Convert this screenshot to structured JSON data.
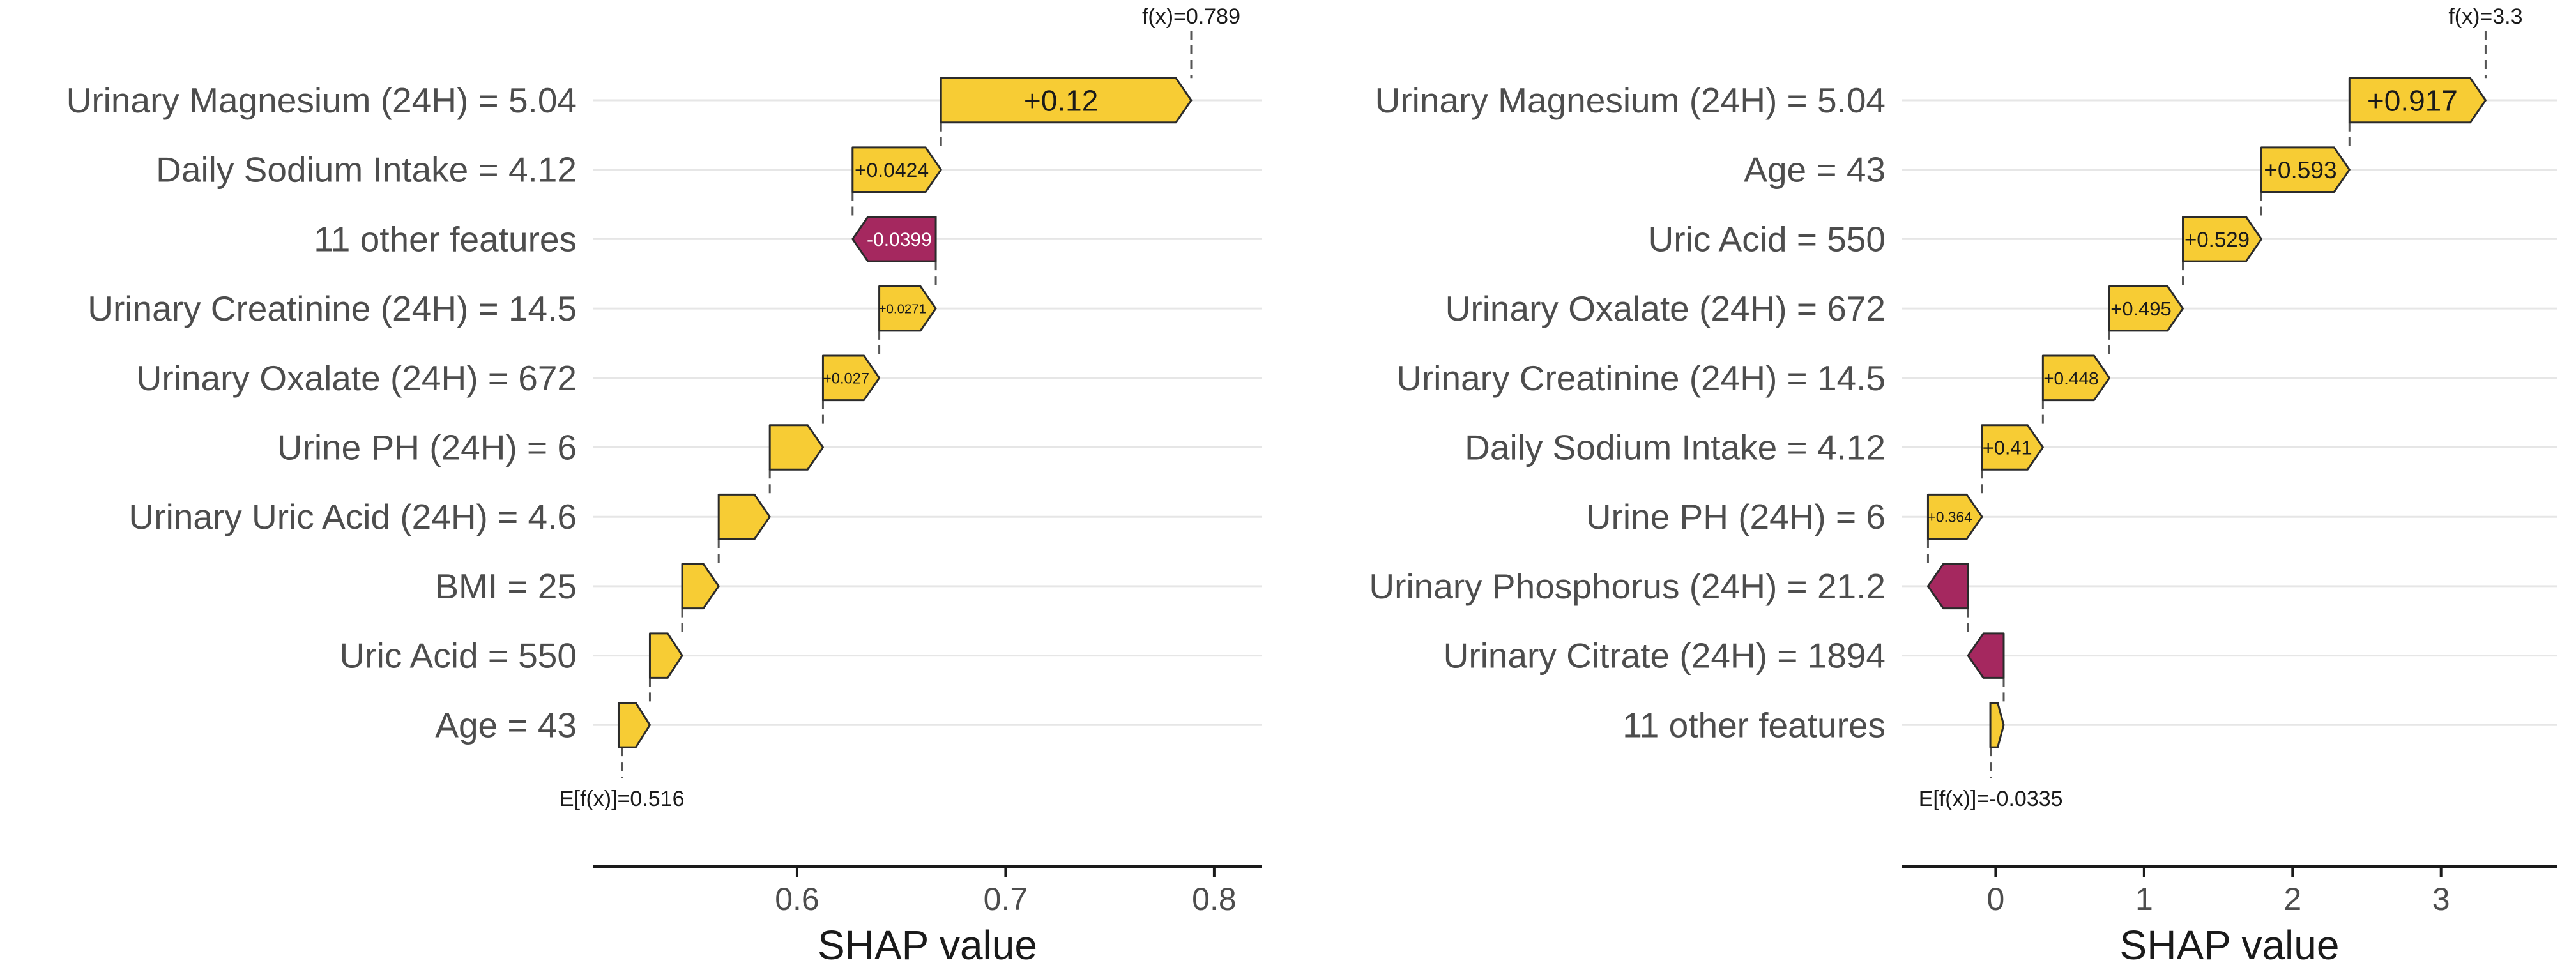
{
  "colors": {
    "positive": "#F7CC34",
    "negative": "#A5285F",
    "grid": "#e6e6e6",
    "axis": "#1a1a1a",
    "text": "#4d4d4d"
  },
  "chart_data": [
    {
      "type": "waterfall",
      "xlabel": "SHAP value",
      "xlim": [
        0.502,
        0.823
      ],
      "xticks": [
        0.6,
        0.7,
        0.8
      ],
      "xtick_labels": [
        "0.6",
        "0.7",
        "0.8"
      ],
      "base_value": 0.516,
      "base_label": "E[f(x)]=0.516",
      "final_value": 0.789,
      "final_label": "f(x)=0.789",
      "features": [
        "Urinary Magnesium (24H) = 5.04",
        "Daily Sodium Intake = 4.12",
        "11 other features",
        "Urinary Creatinine (24H) = 14.5",
        "Urinary Oxalate (24H) = 672",
        "Urine PH (24H) = 6",
        "Urinary Uric Acid (24H) = 4.6",
        "BMI = 25",
        "Uric Acid = 550",
        "Age = 43"
      ],
      "values": [
        0.12,
        0.0424,
        -0.0399,
        0.0271,
        0.027,
        0.0255,
        0.0245,
        0.0175,
        0.0155,
        0.015
      ],
      "value_labels": [
        "+0.12",
        "+0.0424",
        "-0.0399",
        "+0.0271",
        "+0.027",
        "",
        "",
        "",
        "",
        ""
      ]
    },
    {
      "type": "waterfall",
      "xlabel": "SHAP value",
      "xlim": [
        -0.63,
        3.78
      ],
      "xticks": [
        0,
        1,
        2,
        3
      ],
      "xtick_labels": [
        "0",
        "1",
        "2",
        "3"
      ],
      "base_value": -0.0335,
      "base_label": "E[f(x)]=-0.0335",
      "final_value": 3.3,
      "final_label": "f(x)=3.3",
      "features": [
        "Urinary Magnesium (24H) = 5.04",
        "Age = 43",
        "Uric Acid = 550",
        "Urinary Oxalate (24H) = 672",
        "Urinary Creatinine (24H) = 14.5",
        "Daily Sodium Intake = 4.12",
        "Urine PH (24H) = 6",
        "Urinary Phosphorus (24H) = 21.2",
        "Urinary Citrate (24H) = 1894",
        "11 other features"
      ],
      "values": [
        0.917,
        0.593,
        0.529,
        0.495,
        0.448,
        0.41,
        0.364,
        -0.27,
        -0.24,
        0.09
      ],
      "value_labels": [
        "+0.917",
        "+0.593",
        "+0.529",
        "+0.495",
        "+0.448",
        "+0.41",
        "+0.364",
        "",
        "",
        ""
      ]
    }
  ]
}
